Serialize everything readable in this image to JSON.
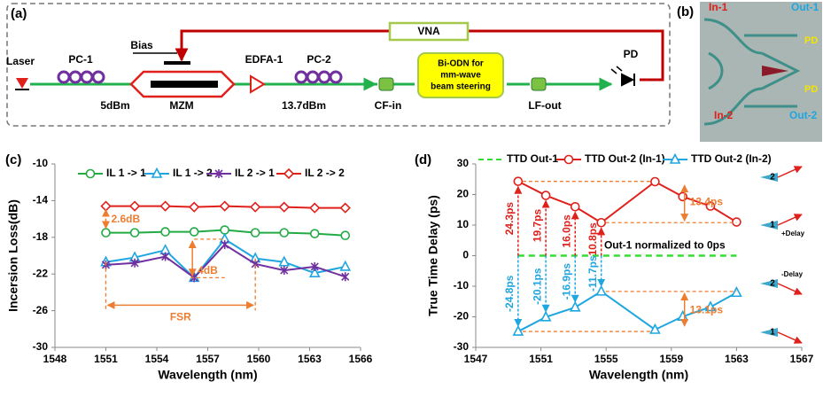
{
  "diagram": {
    "panel": "(a)",
    "laser": "Laser",
    "pc1": "PC-1",
    "bias": "Bias",
    "mzm": "MZM",
    "edfa": "EDFA-1",
    "pc2": "PC-2",
    "vna": "VNA",
    "odn": [
      "Bi-ODN for",
      "mm-wave",
      "beam steering"
    ],
    "pd": "PD",
    "power1": "5dBm",
    "power2": "13.7dBm",
    "cf_in": "CF-in",
    "lf_out": "LF-out"
  },
  "chip": {
    "panel": "(b)",
    "in1": "In-1",
    "out1": "Out-1",
    "in2": "In-2",
    "out2": "Out-2",
    "pd_labels": [
      "PD",
      "PD"
    ]
  },
  "chart_data": [
    {
      "type": "line",
      "panel": "(c)",
      "xlabel": "Wavelength (nm)",
      "ylabel": "Incersion Loss(dB)",
      "legend": "top",
      "x": [
        1551.0,
        1552.7,
        1554.5,
        1556.2,
        1558.0,
        1559.8,
        1561.5,
        1563.3,
        1565.1
      ],
      "xlim": [
        1548,
        1566
      ],
      "xticks": [
        1548,
        1551,
        1554,
        1557,
        1560,
        1563,
        1566
      ],
      "ylim": [
        -30,
        -10
      ],
      "yticks": [
        -30,
        -26,
        -22,
        -18,
        -14,
        -10
      ],
      "series": [
        {
          "name": "IL 1 -> 1",
          "color": "#22aa44",
          "marker": "circle",
          "values": [
            -17.5,
            -17.5,
            -17.4,
            -17.4,
            -17.2,
            -17.5,
            -17.5,
            -17.6,
            -17.8
          ]
        },
        {
          "name": "IL 1 -> 2",
          "color": "#1fa6e0",
          "marker": "triangle",
          "values": [
            -20.7,
            -20.2,
            -19.4,
            -22.4,
            -18.2,
            -20.3,
            -20.7,
            -21.9,
            -21.2
          ]
        },
        {
          "name": "IL 2 -> 1",
          "color": "#7030a0",
          "marker": "x",
          "values": [
            -21.0,
            -20.8,
            -20.1,
            -22.4,
            -18.8,
            -20.9,
            -21.6,
            -21.2,
            -22.3
          ]
        },
        {
          "name": "IL 2 -> 2",
          "color": "#e0201b",
          "marker": "diamond",
          "values": [
            -14.6,
            -14.6,
            -14.6,
            -14.7,
            -14.6,
            -14.7,
            -14.7,
            -14.8,
            -14.8
          ]
        }
      ],
      "annotations": [
        "2.6dB",
        "4dB",
        "FSR"
      ],
      "annotation_color": "#ed7d31"
    },
    {
      "type": "line",
      "panel": "(d)",
      "xlabel": "Wavelength (nm)",
      "ylabel": "True Time Delay (ps)",
      "legend": "top",
      "x": [
        1549.6,
        1551.3,
        1553.1,
        1554.7,
        1558.0,
        1559.7,
        1561.4,
        1563.0
      ],
      "xlim": [
        1547,
        1567
      ],
      "xticks": [
        1547,
        1551,
        1555,
        1559,
        1563,
        1567
      ],
      "ylim": [
        -30,
        30
      ],
      "yticks": [
        -30,
        -20,
        -10,
        0,
        10,
        20,
        30
      ],
      "series": [
        {
          "name": "TTD Out-1",
          "color": "#33dd33",
          "marker": "none",
          "dash": true,
          "values": [
            0,
            0,
            0,
            0,
            0,
            0,
            0,
            0
          ]
        },
        {
          "name": "TTD Out-2 (In-1)",
          "color": "#e0201b",
          "marker": "circle",
          "values": [
            24.3,
            19.7,
            16.0,
            10.8,
            24.2,
            19.3,
            16.2,
            11.0
          ],
          "value_labels": [
            "24.3ps",
            "19.7ps",
            "16.0ps",
            "10.8ps",
            null,
            null,
            null,
            null
          ]
        },
        {
          "name": "TTD Out-2 (In-2)",
          "color": "#1fa6e0",
          "marker": "triangle",
          "values": [
            -24.8,
            -20.1,
            -16.9,
            -11.7,
            -24.2,
            -19.9,
            -16.8,
            -12.1
          ],
          "value_labels": [
            "-24.8ps",
            "-20.1ps",
            "-16.9ps",
            "-11.7ps",
            null,
            null,
            null,
            null
          ]
        }
      ],
      "annotations": [
        "Out-1 normalized to 0ps",
        "13.4ps",
        "13.1ps"
      ],
      "annotation_color": "#ed7d31",
      "icon_labels": [
        "2",
        "1",
        "+Delay",
        "2",
        "-Delay",
        "1"
      ]
    }
  ]
}
